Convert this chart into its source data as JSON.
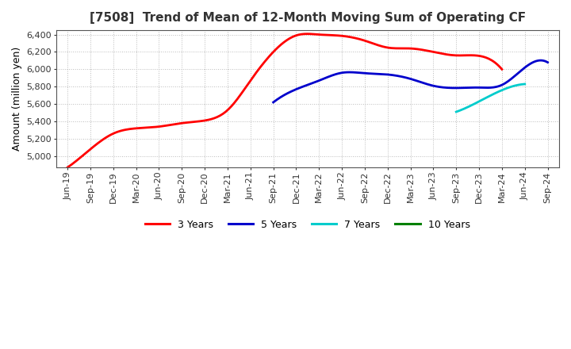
{
  "title": "[7508]  Trend of Mean of 12-Month Moving Sum of Operating CF",
  "ylabel": "Amount (million yen)",
  "ylim": [
    4870,
    6450
  ],
  "yticks": [
    5000,
    5200,
    5400,
    5600,
    5800,
    6000,
    6200,
    6400
  ],
  "background_color": "#ffffff",
  "plot_bg_color": "#ffffff",
  "grid_color": "#bbbbbb",
  "x_labels": [
    "Jun-19",
    "Sep-19",
    "Dec-19",
    "Mar-20",
    "Jun-20",
    "Sep-20",
    "Dec-20",
    "Mar-21",
    "Jun-21",
    "Sep-21",
    "Dec-21",
    "Mar-22",
    "Jun-22",
    "Sep-22",
    "Dec-22",
    "Mar-23",
    "Jun-23",
    "Sep-23",
    "Dec-23",
    "Mar-24",
    "Jun-24",
    "Sep-24"
  ],
  "series": [
    {
      "label": "3 Years",
      "color": "#ff0000",
      "data_x": [
        0,
        1,
        2,
        3,
        4,
        5,
        6,
        7,
        8,
        9,
        10,
        11,
        12,
        13,
        14,
        15,
        16,
        17,
        18,
        19
      ],
      "data_y": [
        4870,
        5080,
        5260,
        5320,
        5340,
        5380,
        5410,
        5530,
        5870,
        6200,
        6390,
        6400,
        6385,
        6330,
        6250,
        6240,
        6200,
        6160,
        6155,
        6000
      ]
    },
    {
      "label": "5 Years",
      "color": "#0000cc",
      "data_x": [
        9,
        10,
        11,
        12,
        13,
        14,
        15,
        16,
        17,
        18,
        19,
        20,
        21
      ],
      "data_y": [
        5620,
        5770,
        5870,
        5960,
        5955,
        5940,
        5890,
        5810,
        5785,
        5790,
        5820,
        6020,
        6080
      ]
    },
    {
      "label": "7 Years",
      "color": "#00cccc",
      "data_x": [
        17,
        18,
        19,
        20
      ],
      "data_y": [
        5510,
        5630,
        5760,
        5830
      ]
    },
    {
      "label": "10 Years",
      "color": "#008000",
      "data_x": [],
      "data_y": []
    }
  ],
  "legend_colors": [
    "#ff0000",
    "#0000cc",
    "#00cccc",
    "#008000"
  ],
  "legend_labels": [
    "3 Years",
    "5 Years",
    "7 Years",
    "10 Years"
  ]
}
